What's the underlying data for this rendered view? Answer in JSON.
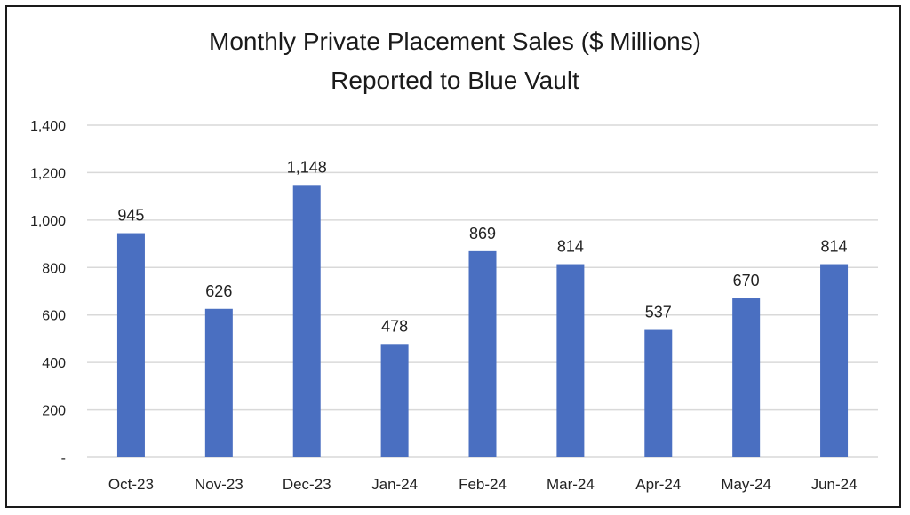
{
  "chart_data": {
    "type": "bar",
    "title": "Monthly Private Placement Sales ($ Millions)",
    "subtitle": "Reported to Blue Vault",
    "xlabel": "",
    "ylabel": "",
    "categories": [
      "Oct-23",
      "Nov-23",
      "Dec-23",
      "Jan-24",
      "Feb-24",
      "Mar-24",
      "Apr-24",
      "May-24",
      "Jun-24"
    ],
    "values": [
      945,
      626,
      1148,
      478,
      869,
      814,
      537,
      670,
      814
    ],
    "data_labels": [
      "945",
      "626",
      "1,148",
      "478",
      "869",
      "814",
      "537",
      "670",
      "814"
    ],
    "ylim": [
      0,
      1400
    ],
    "yticks": [
      0,
      200,
      400,
      600,
      800,
      1000,
      1200,
      1400
    ],
    "ytick_labels": [
      "-",
      "200",
      "400",
      "600",
      "800",
      "1,000",
      "1,200",
      "1,400"
    ],
    "grid": true,
    "legend": "none",
    "bar_color": "#4A6FC1",
    "grid_color": "#D9D9D9"
  }
}
